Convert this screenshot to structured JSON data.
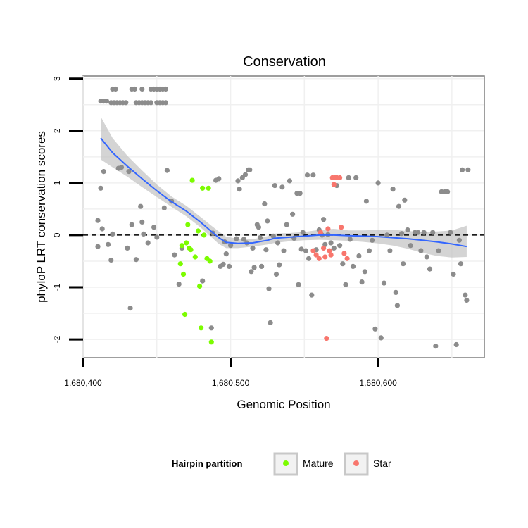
{
  "chart_data": {
    "type": "scatter",
    "title": "Conservation",
    "xlabel": "Genomic Position",
    "ylabel": "phyloP LRT conservation scores",
    "xlim": [
      1680400,
      1680672
    ],
    "ylim": [
      -2.35,
      3.05
    ],
    "x_ticks": [
      {
        "value": 1680400,
        "label": "1,680,400"
      },
      {
        "value": 1680500,
        "label": "1,680,500"
      },
      {
        "value": 1680600,
        "label": "1,680,600"
      }
    ],
    "y_ticks": [
      {
        "value": 3,
        "label": "3"
      },
      {
        "value": 2,
        "label": "2"
      },
      {
        "value": 1,
        "label": "1"
      },
      {
        "value": 0,
        "label": "0"
      },
      {
        "value": -1,
        "label": "-1"
      },
      {
        "value": -2,
        "label": "-2"
      }
    ],
    "grid": true,
    "reference_line": {
      "y": 0,
      "style": "dashed"
    },
    "legend": {
      "title": "Hairpin partition",
      "position": "bottom",
      "entries": [
        {
          "label": "Mature",
          "color": "#7cfc00"
        },
        {
          "label": "Star",
          "color": "#f8766d"
        }
      ]
    },
    "colors": {
      "other": "#8c8c8c",
      "mature": "#7cfc00",
      "star": "#f8766d",
      "smooth": "#3366ff",
      "ribbon": "#bdbdbd"
    },
    "series": [
      {
        "name": "Other",
        "points": [
          [
            1680412,
            2.57
          ],
          [
            1680414,
            2.57
          ],
          [
            1680416,
            2.57
          ],
          [
            1680420,
            2.8
          ],
          [
            1680422,
            2.8
          ],
          [
            1680419,
            2.54
          ],
          [
            1680421,
            2.54
          ],
          [
            1680423,
            2.54
          ],
          [
            1680425,
            2.54
          ],
          [
            1680427,
            2.54
          ],
          [
            1680429,
            2.54
          ],
          [
            1680433,
            2.8
          ],
          [
            1680435,
            2.8
          ],
          [
            1680440,
            2.8
          ],
          [
            1680446,
            2.8
          ],
          [
            1680448,
            2.8
          ],
          [
            1680450,
            2.8
          ],
          [
            1680452,
            2.8
          ],
          [
            1680454,
            2.8
          ],
          [
            1680456,
            2.8
          ],
          [
            1680436,
            2.54
          ],
          [
            1680438,
            2.54
          ],
          [
            1680440,
            2.54
          ],
          [
            1680442,
            2.54
          ],
          [
            1680444,
            2.54
          ],
          [
            1680446,
            2.54
          ],
          [
            1680450,
            2.54
          ],
          [
            1680452,
            2.54
          ],
          [
            1680454,
            2.54
          ],
          [
            1680456,
            2.54
          ],
          [
            1680410,
            0.28
          ],
          [
            1680410,
            -0.22
          ],
          [
            1680412,
            0.9
          ],
          [
            1680413,
            0.12
          ],
          [
            1680414,
            1.22
          ],
          [
            1680417,
            -0.18
          ],
          [
            1680419,
            -0.48
          ],
          [
            1680420,
            0.02
          ],
          [
            1680424,
            1.28
          ],
          [
            1680426,
            1.3
          ],
          [
            1680430,
            -0.25
          ],
          [
            1680431,
            1.22
          ],
          [
            1680432,
            -1.4
          ],
          [
            1680433,
            0.2
          ],
          [
            1680436,
            -0.47
          ],
          [
            1680439,
            0.55
          ],
          [
            1680440,
            0.25
          ],
          [
            1680441,
            0.02
          ],
          [
            1680444,
            -0.15
          ],
          [
            1680448,
            0.15
          ],
          [
            1680450,
            -0.04
          ],
          [
            1680455,
            0.52
          ],
          [
            1680457,
            1.24
          ],
          [
            1680460,
            0.65
          ],
          [
            1680462,
            -0.38
          ],
          [
            1680465,
            -0.94
          ],
          [
            1680467,
            -0.25
          ],
          [
            1680481,
            -0.88
          ],
          [
            1680487,
            -1.78
          ],
          [
            1680488,
            0.04
          ],
          [
            1680490,
            1.05
          ],
          [
            1680492,
            1.08
          ],
          [
            1680493,
            -0.6
          ],
          [
            1680495,
            -0.56
          ],
          [
            1680496,
            -0.13
          ],
          [
            1680497,
            -0.36
          ],
          [
            1680499,
            -0.6
          ],
          [
            1680500,
            -0.2
          ],
          [
            1680504,
            -0.07
          ],
          [
            1680505,
            1.04
          ],
          [
            1680506,
            0.88
          ],
          [
            1680508,
            1.1
          ],
          [
            1680509,
            -0.08
          ],
          [
            1680510,
            1.16
          ],
          [
            1680511,
            -0.15
          ],
          [
            1680512,
            1.25
          ],
          [
            1680513,
            1.25
          ],
          [
            1680514,
            -0.7
          ],
          [
            1680515,
            -0.25
          ],
          [
            1680516,
            -0.62
          ],
          [
            1680518,
            0.2
          ],
          [
            1680519,
            0.15
          ],
          [
            1680520,
            -0.05
          ],
          [
            1680521,
            -0.6
          ],
          [
            1680523,
            0.6
          ],
          [
            1680524,
            -0.28
          ],
          [
            1680525,
            0.27
          ],
          [
            1680526,
            -1.03
          ],
          [
            1680527,
            -1.68
          ],
          [
            1680529,
            -0.02
          ],
          [
            1680530,
            0.95
          ],
          [
            1680531,
            -0.75
          ],
          [
            1680532,
            -0.15
          ],
          [
            1680533,
            -0.57
          ],
          [
            1680535,
            0.92
          ],
          [
            1680536,
            -0.3
          ],
          [
            1680538,
            0.2
          ],
          [
            1680540,
            1.04
          ],
          [
            1680542,
            0.4
          ],
          [
            1680543,
            -0.06
          ],
          [
            1680545,
            0.8
          ],
          [
            1680546,
            -0.95
          ],
          [
            1680547,
            0.8
          ],
          [
            1680548,
            -0.27
          ],
          [
            1680549,
            0.05
          ],
          [
            1680551,
            -0.3
          ],
          [
            1680552,
            1.15
          ],
          [
            1680553,
            -0.45
          ],
          [
            1680555,
            -1.15
          ],
          [
            1680556,
            1.15
          ],
          [
            1680558,
            -0.28
          ],
          [
            1680560,
            0.1
          ],
          [
            1680562,
            0.0
          ],
          [
            1680563,
            0.3
          ],
          [
            1680564,
            -0.18
          ],
          [
            1680566,
            0.01
          ],
          [
            1680568,
            -0.15
          ],
          [
            1680570,
            -0.25
          ],
          [
            1680572,
            0.95
          ],
          [
            1680574,
            -0.2
          ],
          [
            1680576,
            -0.55
          ],
          [
            1680578,
            -0.95
          ],
          [
            1680580,
            1.1
          ],
          [
            1680581,
            -0.08
          ],
          [
            1680583,
            -0.6
          ],
          [
            1680585,
            1.1
          ],
          [
            1680587,
            -0.4
          ],
          [
            1680589,
            -0.9
          ],
          [
            1680591,
            -0.7
          ],
          [
            1680592,
            0.65
          ],
          [
            1680594,
            -0.3
          ],
          [
            1680596,
            -0.1
          ],
          [
            1680598,
            -1.8
          ],
          [
            1680600,
            1.0
          ],
          [
            1680602,
            -1.97
          ],
          [
            1680604,
            -0.92
          ],
          [
            1680606,
            0.0
          ],
          [
            1680608,
            -0.3
          ],
          [
            1680610,
            0.88
          ],
          [
            1680612,
            -1.1
          ],
          [
            1680613,
            -1.35
          ],
          [
            1680614,
            0.55
          ],
          [
            1680616,
            0.03
          ],
          [
            1680617,
            -0.55
          ],
          [
            1680618,
            0.67
          ],
          [
            1680620,
            0.1
          ],
          [
            1680622,
            -0.2
          ],
          [
            1680625,
            0.05
          ],
          [
            1680627,
            0.05
          ],
          [
            1680629,
            -0.3
          ],
          [
            1680631,
            0.05
          ],
          [
            1680633,
            -0.42
          ],
          [
            1680635,
            -0.65
          ],
          [
            1680637,
            0.05
          ],
          [
            1680639,
            -2.13
          ],
          [
            1680641,
            -0.3
          ],
          [
            1680643,
            0.83
          ],
          [
            1680645,
            0.83
          ],
          [
            1680647,
            0.83
          ],
          [
            1680649,
            0.05
          ],
          [
            1680651,
            -0.75
          ],
          [
            1680653,
            -2.1
          ],
          [
            1680655,
            -0.1
          ],
          [
            1680656,
            -0.55
          ],
          [
            1680657,
            1.25
          ],
          [
            1680659,
            -1.15
          ],
          [
            1680660,
            -1.25
          ],
          [
            1680661,
            1.25
          ]
        ]
      },
      {
        "name": "Mature",
        "points": [
          [
            1680466,
            -0.55
          ],
          [
            1680467,
            -0.2
          ],
          [
            1680468,
            -0.75
          ],
          [
            1680469,
            -1.52
          ],
          [
            1680470,
            -0.15
          ],
          [
            1680471,
            0.2
          ],
          [
            1680472,
            -0.25
          ],
          [
            1680473,
            -0.28
          ],
          [
            1680474,
            1.05
          ],
          [
            1680476,
            -0.42
          ],
          [
            1680478,
            0.08
          ],
          [
            1680479,
            -0.98
          ],
          [
            1680480,
            -1.78
          ],
          [
            1680481,
            0.9
          ],
          [
            1680482,
            0.0
          ],
          [
            1680484,
            -0.45
          ],
          [
            1680485,
            0.9
          ],
          [
            1680486,
            -0.5
          ],
          [
            1680487,
            -2.05
          ]
        ]
      },
      {
        "name": "Star",
        "points": [
          [
            1680556,
            -0.3
          ],
          [
            1680558,
            -0.38
          ],
          [
            1680560,
            -0.45
          ],
          [
            1680561,
            0.05
          ],
          [
            1680563,
            -0.25
          ],
          [
            1680564,
            -0.42
          ],
          [
            1680566,
            0.12
          ],
          [
            1680567,
            -0.3
          ],
          [
            1680568,
            -0.38
          ],
          [
            1680569,
            1.1
          ],
          [
            1680570,
            0.97
          ],
          [
            1680571,
            1.1
          ],
          [
            1680572,
            1.1
          ],
          [
            1680574,
            1.1
          ],
          [
            1680575,
            0.15
          ],
          [
            1680577,
            -0.35
          ],
          [
            1680579,
            -0.45
          ],
          [
            1680565,
            -1.98
          ]
        ]
      }
    ],
    "smooth_line": {
      "x": [
        1680412,
        1680420,
        1680430,
        1680440,
        1680450,
        1680460,
        1680470,
        1680480,
        1680487,
        1680492,
        1680497,
        1680505,
        1680515,
        1680525,
        1680530,
        1680540,
        1680550,
        1680560,
        1680570,
        1680580,
        1680590,
        1680600,
        1680610,
        1680620,
        1680630,
        1680640,
        1680650,
        1680660
      ],
      "y": [
        1.86,
        1.58,
        1.32,
        1.08,
        0.85,
        0.64,
        0.46,
        0.24,
        0.07,
        -0.05,
        -0.14,
        -0.16,
        -0.15,
        -0.1,
        -0.06,
        -0.04,
        -0.02,
        0.0,
        0.0,
        -0.01,
        -0.02,
        -0.03,
        -0.05,
        -0.07,
        -0.1,
        -0.13,
        -0.17,
        -0.22
      ],
      "ci_lower": [
        1.45,
        1.3,
        1.12,
        0.92,
        0.73,
        0.54,
        0.36,
        0.14,
        -0.04,
        -0.17,
        -0.25,
        -0.25,
        -0.22,
        -0.18,
        -0.15,
        -0.12,
        -0.1,
        -0.09,
        -0.1,
        -0.11,
        -0.13,
        -0.16,
        -0.2,
        -0.26,
        -0.34,
        -0.4,
        -0.43,
        -0.42
      ],
      "ci_upper": [
        2.27,
        1.86,
        1.52,
        1.24,
        0.97,
        0.74,
        0.56,
        0.34,
        0.18,
        0.07,
        -0.03,
        -0.07,
        -0.08,
        -0.02,
        0.03,
        0.04,
        0.06,
        0.1,
        0.12,
        0.09,
        0.09,
        0.1,
        0.1,
        0.08,
        0.06,
        0.07,
        0.09,
        0.18
      ]
    }
  }
}
